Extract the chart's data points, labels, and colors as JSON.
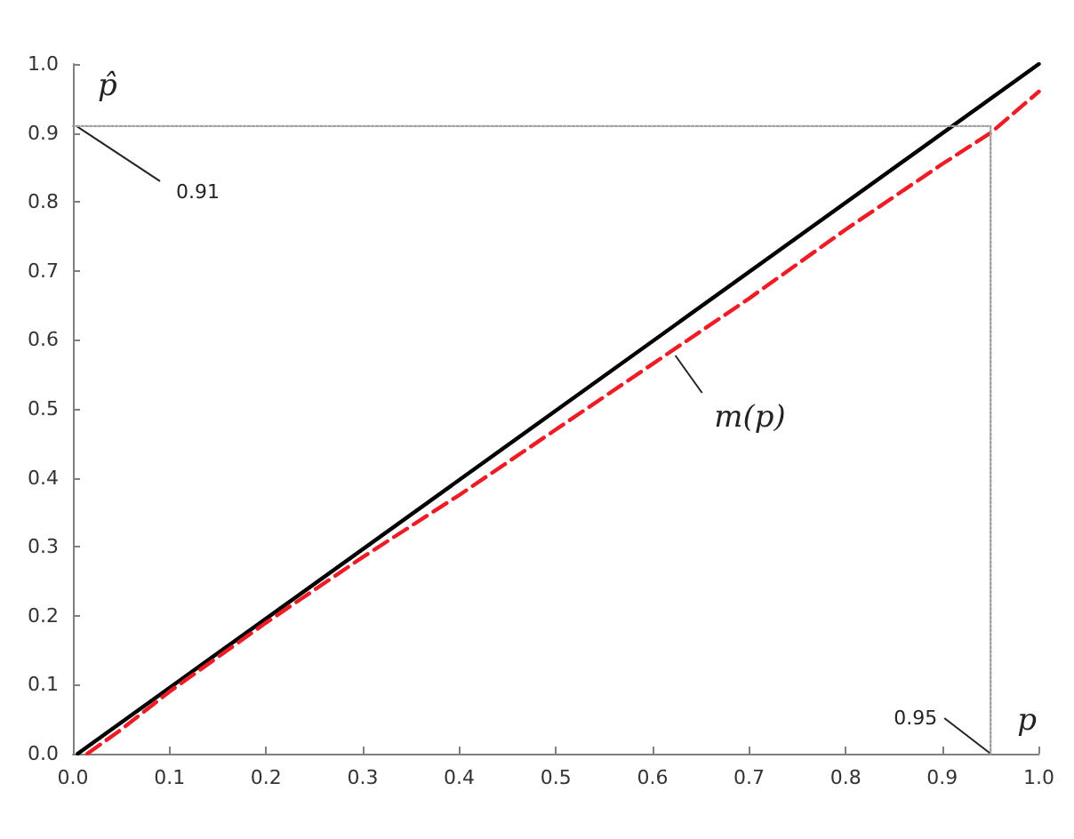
{
  "chart_data": {
    "type": "line",
    "xlabel": "p",
    "ylabel": "p̂",
    "xlim": [
      0,
      1.0
    ],
    "ylim": [
      0,
      1.0
    ],
    "xticks": [
      {
        "value": 0,
        "label": "0.0"
      },
      0.1,
      0.2,
      0.3,
      0.4,
      0.5,
      0.6,
      0.7,
      0.8,
      0.9,
      {
        "value": 1,
        "label": "1.0"
      }
    ],
    "yticks": [
      {
        "value": 0,
        "label": "0.0"
      },
      0.1,
      0.2,
      0.3,
      0.4,
      0.5,
      0.6,
      0.7,
      0.8,
      0.9,
      {
        "value": 1,
        "label": "1.0"
      }
    ],
    "marker": "none",
    "series": [
      {
        "color": "#000000",
        "line_style": "solid",
        "x": [
          0.005,
          1.0
        ],
        "values": [
          0,
          1.0
        ]
      },
      {
        "color": "#ee1c25",
        "line_style": "dashed",
        "x": [
          0.015,
          0.05,
          0.1,
          0.15,
          0.2,
          0.3,
          0.4,
          0.5,
          0.6,
          0.7,
          0.8,
          0.9,
          0.95,
          1.0
        ],
        "values": [
          0,
          0.035,
          0.09,
          0.14,
          0.19,
          0.285,
          0.375,
          0.47,
          0.565,
          0.66,
          0.76,
          0.855,
          0.9,
          0.96
        ]
      },
      {
        "color": "#a0a0a0",
        "line_style": "dotted",
        "x": [
          0,
          0.95,
          0.95
        ],
        "values": [
          0.91,
          0.91,
          0
        ]
      }
    ],
    "annotations": [
      {
        "text": "0.91",
        "x": 0,
        "y": 0.91
      },
      {
        "text": "0.95",
        "x": 0.95,
        "y": 0
      },
      {
        "text": "m(p)",
        "x": 0.62,
        "y": 0.585
      }
    ]
  }
}
